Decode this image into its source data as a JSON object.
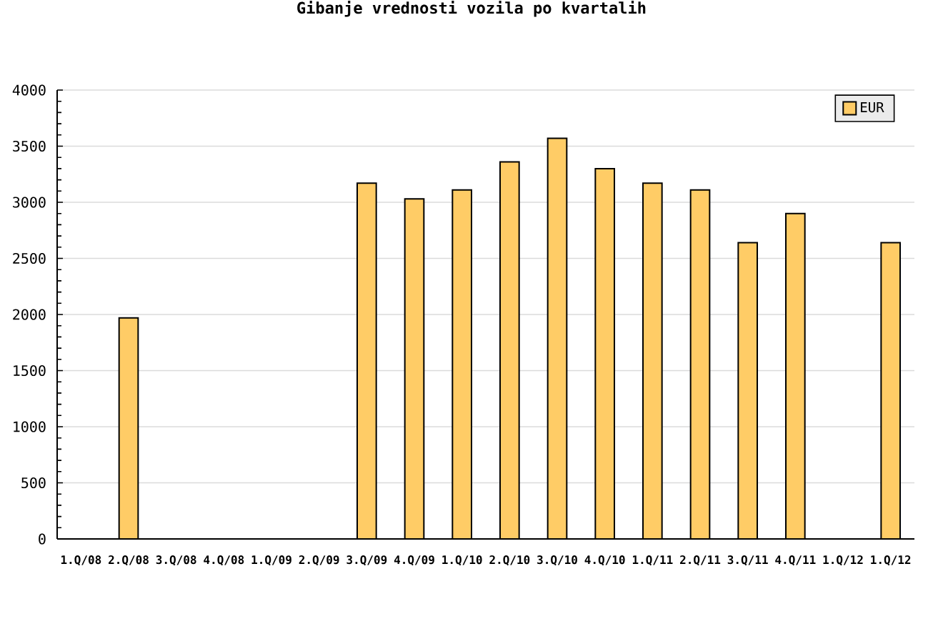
{
  "chart_data": {
    "type": "bar",
    "title": "Gibanje vrednosti vozila po kvartalih",
    "categories": [
      "1.Q/08",
      "2.Q/08",
      "3.Q/08",
      "4.Q/08",
      "1.Q/09",
      "2.Q/09",
      "3.Q/09",
      "4.Q/09",
      "1.Q/10",
      "2.Q/10",
      "3.Q/10",
      "4.Q/10",
      "1.Q/11",
      "2.Q/11",
      "3.Q/11",
      "4.Q/11",
      "1.Q/12",
      "1.Q/12"
    ],
    "series": [
      {
        "name": "EUR",
        "color": "#ffcc66",
        "values": [
          null,
          1970,
          null,
          null,
          null,
          null,
          3170,
          3030,
          3110,
          3360,
          3570,
          3300,
          3170,
          3110,
          2640,
          2900,
          null,
          2640
        ]
      }
    ],
    "ylim": [
      0,
      4000
    ],
    "yticks": [
      0,
      500,
      1000,
      1500,
      2000,
      2500,
      3000,
      3500,
      4000
    ],
    "grid": "y",
    "legend": "top right"
  }
}
